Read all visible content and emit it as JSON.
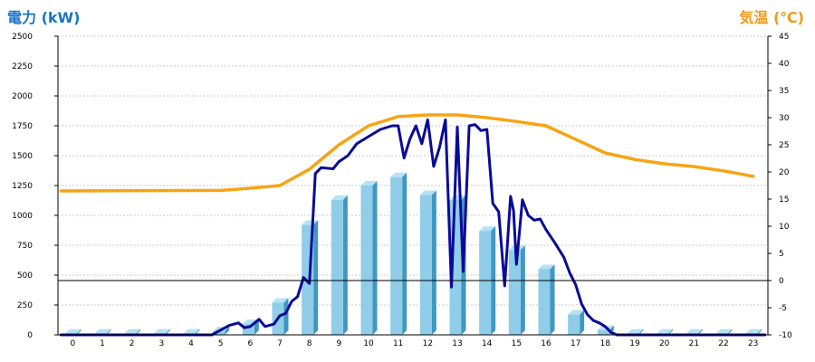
{
  "colors": {
    "power_title": "#1a74c4",
    "temp_title": "#f29a16",
    "bar_face": "#8fcde8",
    "bar_side": "#3f97c2",
    "bar_top": "#b7e2f5",
    "power_line": "#0a0a99",
    "temp_line": "#f6a414",
    "grid": "#c8c8c8",
    "axis": "#000000"
  },
  "chart_data": {
    "type": "bar",
    "left_axis_label": "電力 (kW)",
    "right_axis_label": "気温 (℃)",
    "categories": [
      "0",
      "1",
      "2",
      "3",
      "4",
      "5",
      "6",
      "7",
      "8",
      "9",
      "10",
      "11",
      "12",
      "13",
      "14",
      "15",
      "16",
      "17",
      "18",
      "19",
      "20",
      "21",
      "22",
      "23"
    ],
    "left_ticks": [
      "0",
      "250",
      "500",
      "750",
      "1000",
      "1250",
      "1500",
      "1750",
      "2000",
      "2250",
      "2500"
    ],
    "right_ticks": [
      "-10",
      "-5",
      "0",
      "5",
      "10",
      "15",
      "20",
      "25",
      "30",
      "35",
      "40",
      "45"
    ],
    "left_ylim": [
      0,
      2500
    ],
    "right_ylim": [
      -10,
      45
    ],
    "grid": true,
    "series": [
      {
        "kind": "bar",
        "axis": "left",
        "values": [
          10,
          10,
          10,
          10,
          10,
          30,
          90,
          270,
          920,
          1130,
          1250,
          1320,
          1170,
          1130,
          870,
          710,
          550,
          170,
          40,
          10,
          10,
          10,
          10,
          10
        ]
      },
      {
        "kind": "line",
        "axis": "left",
        "points": [
          [
            -0.4,
            0
          ],
          [
            4.7,
            0
          ],
          [
            5.0,
            40
          ],
          [
            5.3,
            80
          ],
          [
            5.6,
            100
          ],
          [
            5.8,
            60
          ],
          [
            6.0,
            70
          ],
          [
            6.3,
            130
          ],
          [
            6.5,
            70
          ],
          [
            6.8,
            90
          ],
          [
            7.0,
            160
          ],
          [
            7.2,
            180
          ],
          [
            7.4,
            280
          ],
          [
            7.6,
            320
          ],
          [
            7.8,
            480
          ],
          [
            8.0,
            430
          ],
          [
            8.2,
            1350
          ],
          [
            8.4,
            1400
          ],
          [
            8.8,
            1390
          ],
          [
            9.0,
            1450
          ],
          [
            9.3,
            1500
          ],
          [
            9.6,
            1600
          ],
          [
            10.0,
            1660
          ],
          [
            10.4,
            1720
          ],
          [
            10.8,
            1750
          ],
          [
            11.0,
            1750
          ],
          [
            11.2,
            1480
          ],
          [
            11.4,
            1640
          ],
          [
            11.6,
            1750
          ],
          [
            11.8,
            1600
          ],
          [
            12.0,
            1800
          ],
          [
            12.2,
            1410
          ],
          [
            12.4,
            1570
          ],
          [
            12.6,
            1800
          ],
          [
            12.8,
            400
          ],
          [
            13.0,
            1740
          ],
          [
            13.2,
            530
          ],
          [
            13.4,
            1750
          ],
          [
            13.6,
            1760
          ],
          [
            13.8,
            1710
          ],
          [
            14.0,
            1720
          ],
          [
            14.2,
            1100
          ],
          [
            14.4,
            1030
          ],
          [
            14.6,
            410
          ],
          [
            14.8,
            1160
          ],
          [
            14.9,
            1040
          ],
          [
            15.0,
            590
          ],
          [
            15.2,
            1130
          ],
          [
            15.4,
            1000
          ],
          [
            15.6,
            960
          ],
          [
            15.8,
            970
          ],
          [
            16.0,
            880
          ],
          [
            16.3,
            770
          ],
          [
            16.6,
            650
          ],
          [
            16.8,
            520
          ],
          [
            17.0,
            420
          ],
          [
            17.2,
            260
          ],
          [
            17.4,
            170
          ],
          [
            17.6,
            120
          ],
          [
            17.8,
            100
          ],
          [
            18.0,
            70
          ],
          [
            18.2,
            20
          ],
          [
            18.4,
            0
          ],
          [
            23.4,
            0
          ]
        ]
      },
      {
        "kind": "line",
        "axis": "right",
        "points": [
          [
            -0.4,
            16.5
          ],
          [
            5.0,
            16.6
          ],
          [
            6.0,
            17.0
          ],
          [
            7.0,
            17.5
          ],
          [
            8.0,
            20.5
          ],
          [
            9.0,
            25.0
          ],
          [
            10.0,
            28.5
          ],
          [
            11.0,
            30.2
          ],
          [
            12.0,
            30.5
          ],
          [
            13.0,
            30.5
          ],
          [
            14.0,
            30.0
          ],
          [
            15.0,
            29.3
          ],
          [
            16.0,
            28.5
          ],
          [
            17.0,
            26.0
          ],
          [
            18.0,
            23.5
          ],
          [
            19.0,
            22.3
          ],
          [
            20.0,
            21.5
          ],
          [
            21.0,
            21.0
          ],
          [
            22.0,
            20.2
          ],
          [
            23.0,
            19.2
          ]
        ]
      }
    ]
  }
}
